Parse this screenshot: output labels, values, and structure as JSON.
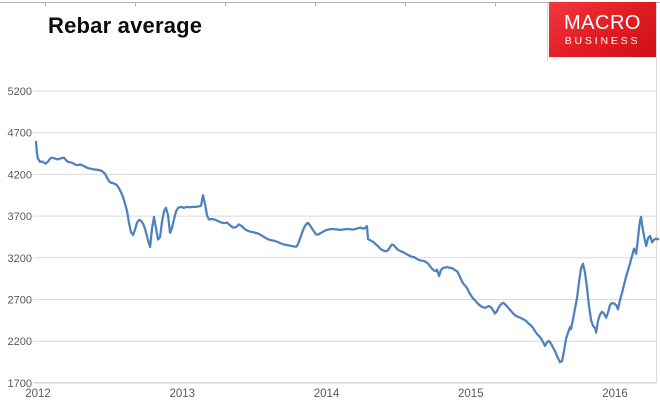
{
  "title": "Rebar average",
  "logo": {
    "line1": "MACRO",
    "line2": "BUSINESS",
    "bg_color": "#e31e24",
    "text_color": "#ffffff"
  },
  "chart_data": {
    "type": "line",
    "title": "Rebar average",
    "series_name": "Rebar average",
    "line_color": "#4f81bd",
    "gridline_color": "#d9d9d9",
    "bottom_gridline_color": "#c0c0c0",
    "axis_label_color": "#595959",
    "grid": true,
    "legend": false,
    "xlabel": "",
    "ylabel": "",
    "x_ticks": [
      2012,
      2013,
      2014,
      2015,
      2016
    ],
    "y_ticks": [
      5200,
      4700,
      4200,
      3700,
      3200,
      2700,
      2200,
      1700
    ],
    "ylim": [
      1700,
      5200
    ],
    "xlim": [
      2011.98,
      2016.31
    ],
    "points": [
      [
        2011.986,
        4590
      ],
      [
        2011.993,
        4450
      ],
      [
        2012.0,
        4390
      ],
      [
        2012.014,
        4350
      ],
      [
        2012.028,
        4355
      ],
      [
        2012.042,
        4340
      ],
      [
        2012.055,
        4330
      ],
      [
        2012.069,
        4355
      ],
      [
        2012.083,
        4390
      ],
      [
        2012.097,
        4400
      ],
      [
        2012.111,
        4395
      ],
      [
        2012.125,
        4385
      ],
      [
        2012.139,
        4380
      ],
      [
        2012.153,
        4390
      ],
      [
        2012.166,
        4395
      ],
      [
        2012.18,
        4400
      ],
      [
        2012.194,
        4370
      ],
      [
        2012.208,
        4350
      ],
      [
        2012.222,
        4345
      ],
      [
        2012.236,
        4340
      ],
      [
        2012.25,
        4325
      ],
      [
        2012.263,
        4315
      ],
      [
        2012.277,
        4310
      ],
      [
        2012.291,
        4320
      ],
      [
        2012.305,
        4310
      ],
      [
        2012.319,
        4300
      ],
      [
        2012.333,
        4285
      ],
      [
        2012.347,
        4275
      ],
      [
        2012.361,
        4270
      ],
      [
        2012.381,
        4262
      ],
      [
        2012.402,
        4258
      ],
      [
        2012.423,
        4252
      ],
      [
        2012.444,
        4240
      ],
      [
        2012.464,
        4210
      ],
      [
        2012.478,
        4160
      ],
      [
        2012.492,
        4120
      ],
      [
        2012.506,
        4100
      ],
      [
        2012.52,
        4095
      ],
      [
        2012.534,
        4085
      ],
      [
        2012.548,
        4070
      ],
      [
        2012.562,
        4030
      ],
      [
        2012.575,
        3990
      ],
      [
        2012.589,
        3930
      ],
      [
        2012.603,
        3850
      ],
      [
        2012.617,
        3760
      ],
      [
        2012.631,
        3620
      ],
      [
        2012.645,
        3505
      ],
      [
        2012.659,
        3475
      ],
      [
        2012.673,
        3540
      ],
      [
        2012.686,
        3620
      ],
      [
        2012.7,
        3655
      ],
      [
        2012.714,
        3645
      ],
      [
        2012.728,
        3610
      ],
      [
        2012.742,
        3550
      ],
      [
        2012.756,
        3450
      ],
      [
        2012.77,
        3365
      ],
      [
        2012.777,
        3330
      ],
      [
        2012.79,
        3550
      ],
      [
        2012.804,
        3690
      ],
      [
        2012.818,
        3555
      ],
      [
        2012.832,
        3420
      ],
      [
        2012.846,
        3445
      ],
      [
        2012.86,
        3640
      ],
      [
        2012.874,
        3760
      ],
      [
        2012.887,
        3800
      ],
      [
        2012.901,
        3715
      ],
      [
        2012.915,
        3500
      ],
      [
        2012.929,
        3560
      ],
      [
        2012.943,
        3660
      ],
      [
        2012.957,
        3755
      ],
      [
        2012.971,
        3800
      ],
      [
        2012.991,
        3810
      ],
      [
        2013.012,
        3800
      ],
      [
        2013.033,
        3810
      ],
      [
        2013.054,
        3805
      ],
      [
        2013.075,
        3810
      ],
      [
        2013.095,
        3810
      ],
      [
        2013.116,
        3818
      ],
      [
        2013.13,
        3822
      ],
      [
        2013.144,
        3950
      ],
      [
        2013.158,
        3845
      ],
      [
        2013.172,
        3705
      ],
      [
        2013.185,
        3660
      ],
      [
        2013.206,
        3665
      ],
      [
        2013.227,
        3658
      ],
      [
        2013.248,
        3640
      ],
      [
        2013.269,
        3625
      ],
      [
        2013.289,
        3615
      ],
      [
        2013.31,
        3622
      ],
      [
        2013.331,
        3590
      ],
      [
        2013.352,
        3562
      ],
      [
        2013.373,
        3568
      ],
      [
        2013.393,
        3600
      ],
      [
        2013.414,
        3578
      ],
      [
        2013.435,
        3540
      ],
      [
        2013.456,
        3522
      ],
      [
        2013.477,
        3512
      ],
      [
        2013.497,
        3505
      ],
      [
        2013.518,
        3495
      ],
      [
        2013.539,
        3480
      ],
      [
        2013.56,
        3458
      ],
      [
        2013.581,
        3435
      ],
      [
        2013.601,
        3418
      ],
      [
        2013.622,
        3410
      ],
      [
        2013.643,
        3402
      ],
      [
        2013.664,
        3388
      ],
      [
        2013.685,
        3372
      ],
      [
        2013.705,
        3360
      ],
      [
        2013.726,
        3352
      ],
      [
        2013.747,
        3345
      ],
      [
        2013.768,
        3338
      ],
      [
        2013.789,
        3332
      ],
      [
        2013.802,
        3360
      ],
      [
        2013.816,
        3430
      ],
      [
        2013.83,
        3500
      ],
      [
        2013.844,
        3560
      ],
      [
        2013.858,
        3600
      ],
      [
        2013.872,
        3620
      ],
      [
        2013.886,
        3585
      ],
      [
        2013.9,
        3550
      ],
      [
        2013.913,
        3515
      ],
      [
        2013.927,
        3480
      ],
      [
        2013.941,
        3478
      ],
      [
        2013.955,
        3492
      ],
      [
        2013.969,
        3505
      ],
      [
        2013.983,
        3520
      ],
      [
        2013.997,
        3532
      ],
      [
        2014.018,
        3540
      ],
      [
        2014.038,
        3545
      ],
      [
        2014.059,
        3542
      ],
      [
        2014.08,
        3538
      ],
      [
        2014.101,
        3535
      ],
      [
        2014.121,
        3540
      ],
      [
        2014.142,
        3545
      ],
      [
        2014.163,
        3542
      ],
      [
        2014.184,
        3538
      ],
      [
        2014.205,
        3548
      ],
      [
        2014.226,
        3558
      ],
      [
        2014.239,
        3562
      ],
      [
        2014.253,
        3550
      ],
      [
        2014.267,
        3555
      ],
      [
        2014.281,
        3580
      ],
      [
        2014.288,
        3425
      ],
      [
        2014.302,
        3410
      ],
      [
        2014.316,
        3398
      ],
      [
        2014.33,
        3382
      ],
      [
        2014.343,
        3360
      ],
      [
        2014.357,
        3340
      ],
      [
        2014.371,
        3312
      ],
      [
        2014.385,
        3295
      ],
      [
        2014.399,
        3283
      ],
      [
        2014.413,
        3278
      ],
      [
        2014.427,
        3292
      ],
      [
        2014.44,
        3330
      ],
      [
        2014.454,
        3360
      ],
      [
        2014.468,
        3348
      ],
      [
        2014.482,
        3320
      ],
      [
        2014.496,
        3295
      ],
      [
        2014.51,
        3283
      ],
      [
        2014.524,
        3272
      ],
      [
        2014.538,
        3262
      ],
      [
        2014.551,
        3248
      ],
      [
        2014.565,
        3235
      ],
      [
        2014.579,
        3222
      ],
      [
        2014.593,
        3212
      ],
      [
        2014.607,
        3208
      ],
      [
        2014.621,
        3192
      ],
      [
        2014.634,
        3178
      ],
      [
        2014.648,
        3170
      ],
      [
        2014.662,
        3165
      ],
      [
        2014.676,
        3162
      ],
      [
        2014.69,
        3150
      ],
      [
        2014.704,
        3130
      ],
      [
        2014.718,
        3098
      ],
      [
        2014.731,
        3070
      ],
      [
        2014.745,
        3048
      ],
      [
        2014.759,
        3040
      ],
      [
        2014.766,
        3060
      ],
      [
        2014.78,
        2980
      ],
      [
        2014.794,
        3055
      ],
      [
        2014.808,
        3078
      ],
      [
        2014.822,
        3085
      ],
      [
        2014.835,
        3088
      ],
      [
        2014.849,
        3082
      ],
      [
        2014.863,
        3078
      ],
      [
        2014.877,
        3070
      ],
      [
        2014.891,
        3052
      ],
      [
        2014.905,
        3040
      ],
      [
        2014.919,
        2995
      ],
      [
        2014.932,
        2945
      ],
      [
        2014.946,
        2895
      ],
      [
        2014.96,
        2868
      ],
      [
        2014.974,
        2838
      ],
      [
        2014.988,
        2788
      ],
      [
        2015.002,
        2748
      ],
      [
        2015.016,
        2712
      ],
      [
        2015.029,
        2692
      ],
      [
        2015.043,
        2662
      ],
      [
        2015.057,
        2638
      ],
      [
        2015.071,
        2618
      ],
      [
        2015.085,
        2608
      ],
      [
        2015.099,
        2598
      ],
      [
        2015.113,
        2612
      ],
      [
        2015.126,
        2622
      ],
      [
        2015.14,
        2608
      ],
      [
        2015.154,
        2572
      ],
      [
        2015.168,
        2532
      ],
      [
        2015.182,
        2562
      ],
      [
        2015.196,
        2612
      ],
      [
        2015.21,
        2642
      ],
      [
        2015.224,
        2660
      ],
      [
        2015.237,
        2645
      ],
      [
        2015.251,
        2618
      ],
      [
        2015.265,
        2590
      ],
      [
        2015.279,
        2562
      ],
      [
        2015.293,
        2535
      ],
      [
        2015.307,
        2512
      ],
      [
        2015.32,
        2500
      ],
      [
        2015.334,
        2488
      ],
      [
        2015.348,
        2478
      ],
      [
        2015.362,
        2465
      ],
      [
        2015.376,
        2452
      ],
      [
        2015.39,
        2432
      ],
      [
        2015.404,
        2408
      ],
      [
        2015.418,
        2388
      ],
      [
        2015.431,
        2362
      ],
      [
        2015.445,
        2322
      ],
      [
        2015.459,
        2288
      ],
      [
        2015.473,
        2262
      ],
      [
        2015.487,
        2232
      ],
      [
        2015.501,
        2192
      ],
      [
        2015.515,
        2142
      ],
      [
        2015.529,
        2188
      ],
      [
        2015.542,
        2202
      ],
      [
        2015.556,
        2172
      ],
      [
        2015.57,
        2122
      ],
      [
        2015.584,
        2082
      ],
      [
        2015.598,
        2022
      ],
      [
        2015.612,
        1972
      ],
      [
        2015.619,
        1948
      ],
      [
        2015.633,
        1962
      ],
      [
        2015.647,
        2088
      ],
      [
        2015.66,
        2228
      ],
      [
        2015.674,
        2302
      ],
      [
        2015.688,
        2368
      ],
      [
        2015.695,
        2345
      ],
      [
        2015.709,
        2462
      ],
      [
        2015.723,
        2592
      ],
      [
        2015.737,
        2722
      ],
      [
        2015.751,
        2918
      ],
      [
        2015.765,
        3078
      ],
      [
        2015.778,
        3128
      ],
      [
        2015.792,
        3022
      ],
      [
        2015.806,
        2842
      ],
      [
        2015.82,
        2622
      ],
      [
        2015.834,
        2452
      ],
      [
        2015.848,
        2382
      ],
      [
        2015.862,
        2358
      ],
      [
        2015.869,
        2302
      ],
      [
        2015.883,
        2448
      ],
      [
        2015.896,
        2518
      ],
      [
        2015.91,
        2552
      ],
      [
        2015.924,
        2532
      ],
      [
        2015.938,
        2482
      ],
      [
        2015.952,
        2548
      ],
      [
        2015.966,
        2638
      ],
      [
        2015.98,
        2658
      ],
      [
        2015.994,
        2652
      ],
      [
        2016.008,
        2632
      ],
      [
        2016.021,
        2582
      ],
      [
        2016.035,
        2695
      ],
      [
        2016.049,
        2782
      ],
      [
        2016.063,
        2880
      ],
      [
        2016.077,
        2975
      ],
      [
        2016.091,
        3055
      ],
      [
        2016.105,
        3135
      ],
      [
        2016.119,
        3230
      ],
      [
        2016.132,
        3310
      ],
      [
        2016.139,
        3282
      ],
      [
        2016.146,
        3248
      ],
      [
        2016.153,
        3340
      ],
      [
        2016.167,
        3560
      ],
      [
        2016.174,
        3650
      ],
      [
        2016.181,
        3692
      ],
      [
        2016.188,
        3595
      ],
      [
        2016.202,
        3455
      ],
      [
        2016.216,
        3342
      ],
      [
        2016.229,
        3435
      ],
      [
        2016.243,
        3462
      ],
      [
        2016.257,
        3385
      ],
      [
        2016.271,
        3418
      ],
      [
        2016.285,
        3432
      ],
      [
        2016.299,
        3422
      ]
    ]
  }
}
